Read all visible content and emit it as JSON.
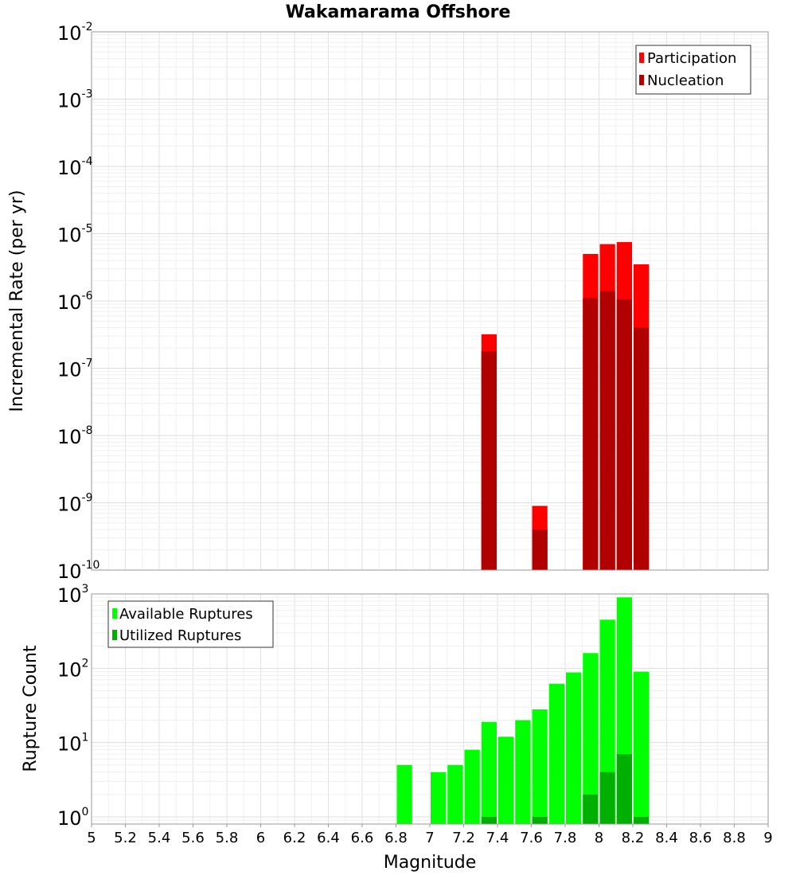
{
  "chart_data": [
    {
      "type": "bar",
      "title": "Wakamarama Offshore",
      "xlabel": "Magnitude",
      "ylabel": "Incremental Rate (per yr)",
      "yscale": "log",
      "ylim": [
        1e-10,
        0.01
      ],
      "xlim": [
        5,
        9
      ],
      "grid": true,
      "legend_position": "top-right",
      "bar_width": 0.1,
      "ytick_labels": [
        {
          "base": "10",
          "exp": "-10"
        },
        {
          "base": "10",
          "exp": "-9"
        },
        {
          "base": "10",
          "exp": "-8"
        },
        {
          "base": "10",
          "exp": "-7"
        },
        {
          "base": "10",
          "exp": "-6"
        },
        {
          "base": "10",
          "exp": "-5"
        },
        {
          "base": "10",
          "exp": "-4"
        },
        {
          "base": "10",
          "exp": "-3"
        },
        {
          "base": "10",
          "exp": "-2"
        }
      ],
      "series": [
        {
          "name": "Participation",
          "color": "#ff0000",
          "points": [
            [
              7.35,
              3.2e-07
            ],
            [
              7.65,
              9e-10
            ],
            [
              7.95,
              5e-06
            ],
            [
              8.05,
              7e-06
            ],
            [
              8.15,
              7.5e-06
            ],
            [
              8.25,
              3.5e-06
            ]
          ]
        },
        {
          "name": "Nucleation",
          "color": "#b00000",
          "points": [
            [
              7.35,
              1.8e-07
            ],
            [
              7.65,
              4e-10
            ],
            [
              7.95,
              1.1e-06
            ],
            [
              8.05,
              1.4e-06
            ],
            [
              8.15,
              1.05e-06
            ],
            [
              8.25,
              4e-07
            ]
          ]
        }
      ]
    },
    {
      "type": "bar",
      "title": "",
      "xlabel": "Magnitude",
      "ylabel": "Rupture Count",
      "yscale": "log",
      "ylim": [
        0.8,
        1000
      ],
      "xlim": [
        5,
        9
      ],
      "grid": true,
      "legend_position": "top-left",
      "bar_width": 0.1,
      "ytick_labels": [
        {
          "base": "10",
          "exp": "0"
        },
        {
          "base": "10",
          "exp": "1"
        },
        {
          "base": "10",
          "exp": "2"
        },
        {
          "base": "10",
          "exp": "3"
        }
      ],
      "xtick_labels": [
        "5",
        "5.2",
        "5.4",
        "5.6",
        "5.8",
        "6",
        "6.2",
        "6.4",
        "6.6",
        "6.8",
        "7",
        "7.2",
        "7.4",
        "7.6",
        "7.8",
        "8",
        "8.2",
        "8.4",
        "8.6",
        "8.8",
        "9"
      ],
      "series": [
        {
          "name": "Available Ruptures",
          "color": "#00ff00",
          "points": [
            [
              6.85,
              5
            ],
            [
              7.05,
              4
            ],
            [
              7.15,
              5
            ],
            [
              7.25,
              8
            ],
            [
              7.35,
              19
            ],
            [
              7.45,
              12
            ],
            [
              7.55,
              20
            ],
            [
              7.65,
              28
            ],
            [
              7.75,
              62
            ],
            [
              7.85,
              88
            ],
            [
              7.95,
              160
            ],
            [
              8.05,
              450
            ],
            [
              8.15,
              900
            ],
            [
              8.25,
              90
            ]
          ]
        },
        {
          "name": "Utilized Ruptures",
          "color": "#00b000",
          "points": [
            [
              7.35,
              1
            ],
            [
              7.65,
              1
            ],
            [
              7.95,
              2
            ],
            [
              8.05,
              4
            ],
            [
              8.15,
              7
            ],
            [
              8.25,
              1
            ]
          ]
        }
      ]
    }
  ]
}
